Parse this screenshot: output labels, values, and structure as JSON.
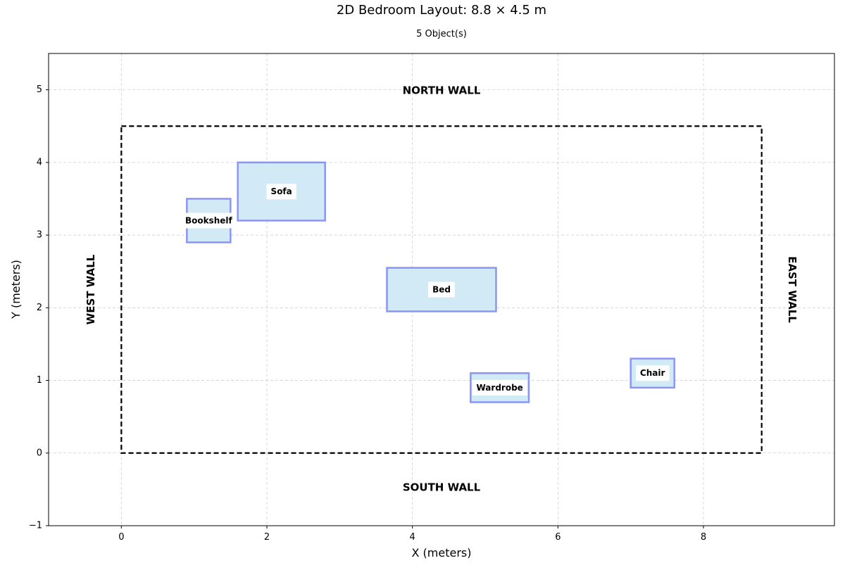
{
  "chart_data": {
    "type": "scatter",
    "title": "2D Bedroom Layout: 8.8 × 4.5 m",
    "subtitle": "5 Object(s)",
    "xlabel": "X (meters)",
    "ylabel": "Y (meters)",
    "xlim": [
      -1,
      9.8
    ],
    "ylim": [
      -1,
      5.5
    ],
    "xticks": [
      0,
      2,
      4,
      6,
      8
    ],
    "yticks": [
      -1,
      0,
      1,
      2,
      3,
      4,
      5
    ],
    "grid": true,
    "room": {
      "x": 0,
      "y": 0,
      "width": 8.8,
      "height": 4.5
    },
    "walls": {
      "north": "NORTH WALL",
      "south": "SOUTH WALL",
      "west": "WEST WALL",
      "east": "EAST WALL"
    },
    "objects": [
      {
        "name": "Bed",
        "x": 3.65,
        "y": 1.95,
        "width": 1.5,
        "height": 0.6
      },
      {
        "name": "Wardrobe",
        "x": 4.8,
        "y": 0.7,
        "width": 0.8,
        "height": 0.4
      },
      {
        "name": "Chair",
        "x": 7.0,
        "y": 0.9,
        "width": 0.6,
        "height": 0.4
      },
      {
        "name": "Bookshelf",
        "x": 0.9,
        "y": 2.9,
        "width": 0.6,
        "height": 0.6
      },
      {
        "name": "Sofa",
        "x": 1.6,
        "y": 3.2,
        "width": 1.2,
        "height": 0.8
      }
    ],
    "colors": {
      "object_fill": "#d1eaf6",
      "object_stroke": "#8b95f5",
      "room_stroke": "#000000",
      "grid": "#b0b0b0"
    }
  }
}
